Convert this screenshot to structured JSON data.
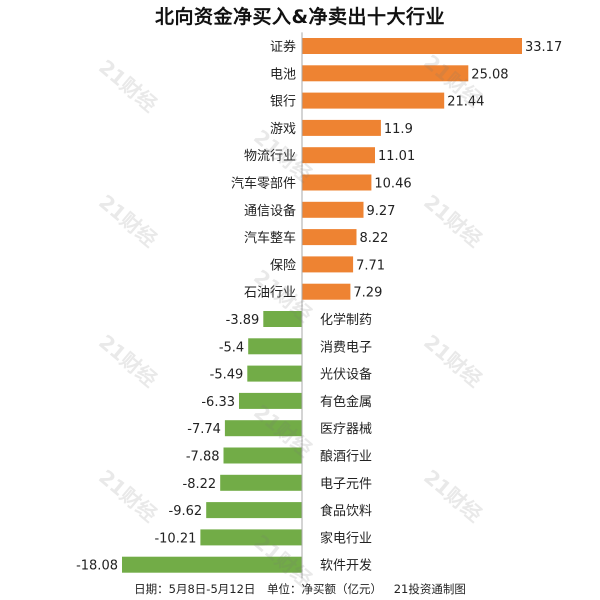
{
  "chart_data": {
    "type": "bar",
    "orientation": "horizontal",
    "title": "北向资金净买入&净卖出十大行业",
    "categories": [
      "证券",
      "电池",
      "银行",
      "游戏",
      "物流行业",
      "汽车零部件",
      "通信设备",
      "汽车整车",
      "保险",
      "石油行业",
      "化学制药",
      "消费电子",
      "光伏设备",
      "有色金属",
      "医疗器械",
      "酿酒行业",
      "电子元件",
      "食品饮料",
      "家电行业",
      "软件开发"
    ],
    "values": [
      33.17,
      25.08,
      21.44,
      11.9,
      11.01,
      10.46,
      9.27,
      8.22,
      7.71,
      7.29,
      -3.89,
      -5.4,
      -5.49,
      -6.33,
      -7.74,
      -7.88,
      -8.22,
      -9.62,
      -10.21,
      -18.08
    ],
    "value_labels": [
      "33.17",
      "25.08",
      "21.44",
      "11.9",
      "11.01",
      "10.46",
      "9.27",
      "8.22",
      "7.71",
      "7.29",
      "-3.89",
      "-5.4",
      "-5.49",
      "-6.33",
      "-7.74",
      "-7.88",
      "-8.22",
      "-9.62",
      "-10.21",
      "-18.08"
    ],
    "xlim": [
      -18.08,
      33.17
    ],
    "grid": false,
    "legend": "none",
    "colors": {
      "positive": "#EE8332",
      "negative": "#72AC47",
      "axis": "#AAAAAA",
      "text": "#222222"
    }
  },
  "footer": {
    "date": "日期：5月8日-5月12日",
    "unit": "单位：净买额（亿元）",
    "source": "21投资通制图"
  },
  "watermark": {
    "text": "21财经"
  }
}
